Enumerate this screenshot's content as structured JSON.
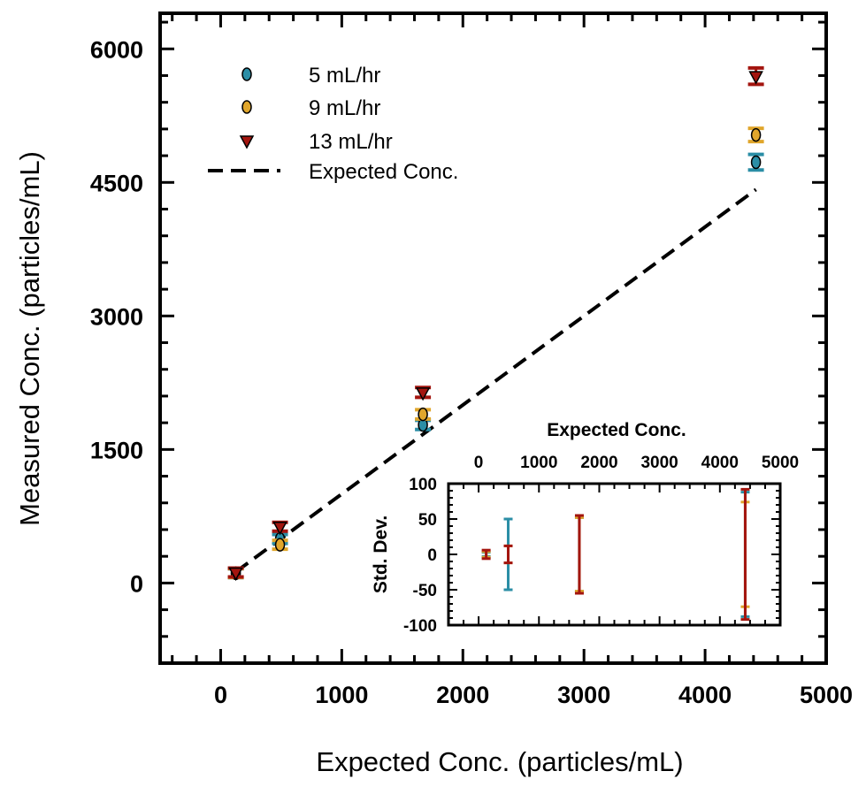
{
  "chart_data": [
    {
      "type": "scatter",
      "xlabel": "Expected Conc. (particles/mL)",
      "ylabel": "Measured Conc. (particles/mL)",
      "xlim": [
        -500,
        5000
      ],
      "ylim": [
        -900,
        6400
      ],
      "xticks": [
        0,
        1000,
        2000,
        3000,
        4000,
        5000
      ],
      "yticks": [
        0,
        1500,
        3000,
        4500,
        6000
      ],
      "grid": false,
      "legend_position": "top-left",
      "series": [
        {
          "name": "5 mL/hr",
          "marker": "circle",
          "color": "#2b8ea6",
          "x": [
            125,
            490,
            1670,
            4420
          ],
          "y": [
            110,
            495,
            1776,
            4727
          ],
          "error": [
            3,
            50,
            52,
            88
          ]
        },
        {
          "name": "9 mL/hr",
          "marker": "circle",
          "color": "#e0a62c",
          "x": [
            125,
            490,
            1670,
            4420
          ],
          "y": [
            112,
            430,
            1895,
            5033
          ],
          "error": [
            4,
            12,
            52,
            74
          ]
        },
        {
          "name": "13 mL/hr",
          "marker": "triangle-down",
          "color": "#a3150f",
          "x": [
            125,
            490,
            1670,
            4420
          ],
          "y": [
            118,
            632,
            2141,
            5694
          ],
          "error": [
            6,
            12,
            55,
            92
          ]
        },
        {
          "name": "Expected Conc.",
          "marker": "none",
          "line": "dashed",
          "color": "#000000",
          "x": [
            125,
            4420
          ],
          "y": [
            125,
            4420
          ]
        }
      ]
    },
    {
      "type": "scatter",
      "inset": true,
      "xlabel": "Expected Conc.",
      "ylabel": "Std. Dev.",
      "xaxis_position": "top",
      "xlim": [
        -500,
        5000
      ],
      "ylim": [
        -100,
        100
      ],
      "xticks": [
        0,
        1000,
        2000,
        3000,
        4000,
        5000
      ],
      "yticks": [
        100,
        50,
        0,
        -50,
        -100
      ],
      "series": [
        {
          "name": "5 mL/hr",
          "color": "#2b8ea6",
          "x": [
            125,
            490,
            1670,
            4420
          ],
          "std": [
            3,
            50,
            52,
            88
          ]
        },
        {
          "name": "9 mL/hr",
          "color": "#e0a62c",
          "x": [
            125,
            490,
            1670,
            4420
          ],
          "std": [
            4,
            12,
            52,
            74
          ]
        },
        {
          "name": "13 mL/hr",
          "color": "#a3150f",
          "x": [
            125,
            490,
            1670,
            4420
          ],
          "std": [
            6,
            12,
            55,
            92
          ]
        }
      ]
    }
  ]
}
